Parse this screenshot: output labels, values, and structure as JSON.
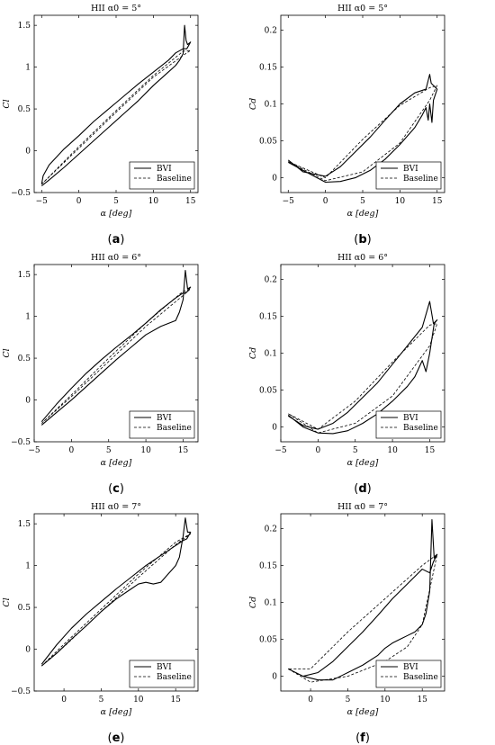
{
  "chart_data": [
    {
      "type": "line",
      "title": "HII α0 = 5°",
      "xlabel": "α [deg]",
      "ylabel": "Cl",
      "xlim": [
        -6,
        16
      ],
      "ylim": [
        -0.5,
        1.62
      ],
      "xticks": [
        -5,
        0,
        5,
        10,
        15
      ],
      "yticks": [
        -0.5,
        0,
        0.5,
        1,
        1.5
      ],
      "caption": "(a)",
      "legend": {
        "position": "bottom-right",
        "entries": [
          "BVI",
          "Baseline"
        ]
      },
      "series": [
        {
          "name": "BVI",
          "style": "solid",
          "x": [
            -5,
            -4,
            -2,
            0,
            2,
            4,
            6,
            8,
            10,
            12,
            13,
            13.5,
            14,
            14.2,
            14.4,
            14.6,
            15,
            14.5,
            14,
            13,
            12,
            10,
            8,
            6,
            4,
            2,
            0,
            -2,
            -4,
            -4.8,
            -5
          ],
          "y": [
            -0.42,
            -0.35,
            -0.2,
            -0.04,
            0.12,
            0.28,
            0.44,
            0.6,
            0.78,
            0.94,
            1.02,
            1.08,
            1.16,
            1.5,
            1.32,
            1.27,
            1.3,
            1.22,
            1.22,
            1.17,
            1.08,
            0.94,
            0.8,
            0.65,
            0.5,
            0.35,
            0.18,
            0.02,
            -0.17,
            -0.3,
            -0.4
          ]
        },
        {
          "name": "Baseline",
          "style": "dashed",
          "x": [
            -5,
            0,
            5,
            10,
            14,
            15,
            14,
            10,
            5,
            0,
            -5
          ],
          "y": [
            -0.4,
            0.05,
            0.48,
            0.9,
            1.19,
            1.2,
            1.14,
            0.88,
            0.46,
            0.03,
            -0.4
          ]
        }
      ]
    },
    {
      "type": "line",
      "title": "HII α0 = 5°",
      "xlabel": "α [deg]",
      "ylabel": "Cd",
      "xlim": [
        -6,
        16
      ],
      "ylim": [
        -0.02,
        0.22
      ],
      "xticks": [
        -5,
        0,
        5,
        10,
        15
      ],
      "yticks": [
        0,
        0.05,
        0.1,
        0.15,
        0.2
      ],
      "caption": "(b)",
      "legend": {
        "position": "bottom-right",
        "entries": [
          "BVI",
          "Baseline"
        ]
      },
      "series": [
        {
          "name": "BVI",
          "style": "solid",
          "x": [
            -5,
            -3,
            0,
            2,
            4,
            6,
            8,
            10,
            12,
            13,
            13.5,
            13.8,
            14,
            14.3,
            14.5,
            15,
            14.5,
            14.2,
            14,
            13.5,
            12,
            10,
            8,
            6,
            4,
            2,
            0,
            -3,
            -5
          ],
          "y": [
            0.021,
            0.01,
            -0.006,
            -0.005,
            0.0,
            0.01,
            0.025,
            0.045,
            0.068,
            0.085,
            0.095,
            0.078,
            0.1,
            0.075,
            0.105,
            0.12,
            0.125,
            0.128,
            0.14,
            0.12,
            0.115,
            0.1,
            0.078,
            0.055,
            0.035,
            0.015,
            0.002,
            0.008,
            0.024
          ]
        },
        {
          "name": "Baseline",
          "style": "dashed",
          "x": [
            -5,
            0,
            5,
            10,
            14,
            15,
            14,
            10,
            5,
            0,
            -5
          ],
          "y": [
            0.022,
            -0.004,
            0.008,
            0.047,
            0.105,
            0.125,
            0.122,
            0.098,
            0.052,
            0.0,
            0.022
          ]
        }
      ]
    },
    {
      "type": "line",
      "title": "HII α0 = 6°",
      "xlabel": "α [deg]",
      "ylabel": "Cl",
      "xlim": [
        -5,
        17
      ],
      "ylim": [
        -0.5,
        1.62
      ],
      "xticks": [
        -5,
        0,
        5,
        10,
        15
      ],
      "yticks": [
        -0.5,
        0,
        0.5,
        1,
        1.5
      ],
      "caption": "(c)",
      "legend": {
        "position": "bottom-right",
        "entries": [
          "BVI",
          "Baseline"
        ]
      },
      "series": [
        {
          "name": "BVI",
          "style": "solid",
          "x": [
            -4,
            -2,
            0,
            2,
            4,
            6,
            8,
            10,
            12,
            14,
            14.5,
            15,
            15.3,
            15.6,
            16,
            15.5,
            15,
            14,
            12,
            10,
            8,
            6,
            4,
            2,
            0,
            -2,
            -4
          ],
          "y": [
            -0.3,
            -0.15,
            0.0,
            0.16,
            0.32,
            0.48,
            0.63,
            0.78,
            0.88,
            0.95,
            1.05,
            1.2,
            1.55,
            1.33,
            1.35,
            1.29,
            1.28,
            1.22,
            1.08,
            0.92,
            0.77,
            0.63,
            0.48,
            0.32,
            0.14,
            -0.05,
            -0.26
          ]
        },
        {
          "name": "Baseline",
          "style": "dashed",
          "x": [
            -4,
            0,
            5,
            10,
            15,
            16,
            15,
            10,
            5,
            0,
            -4
          ],
          "y": [
            -0.28,
            0.06,
            0.5,
            0.92,
            1.3,
            1.33,
            1.25,
            0.88,
            0.46,
            0.04,
            -0.28
          ]
        }
      ]
    },
    {
      "type": "line",
      "title": "HII α0 = 6°",
      "xlabel": "α [deg]",
      "ylabel": "Cd",
      "xlim": [
        -5,
        17
      ],
      "ylim": [
        -0.02,
        0.22
      ],
      "xticks": [
        -5,
        0,
        5,
        10,
        15
      ],
      "yticks": [
        0,
        0.05,
        0.1,
        0.15,
        0.2
      ],
      "caption": "(d)",
      "legend": {
        "position": "bottom-right",
        "entries": [
          "BVI",
          "Baseline"
        ]
      },
      "series": [
        {
          "name": "BVI",
          "style": "solid",
          "x": [
            -4,
            -2,
            0,
            2,
            4,
            6,
            8,
            10,
            12,
            13,
            14,
            14.5,
            15,
            15.3,
            15.6,
            16,
            15.5,
            15,
            14,
            12,
            10,
            8,
            6,
            4,
            2,
            0,
            -2,
            -4
          ],
          "y": [
            0.016,
            0.0,
            -0.008,
            -0.009,
            -0.005,
            0.005,
            0.018,
            0.035,
            0.055,
            0.068,
            0.09,
            0.075,
            0.1,
            0.12,
            0.14,
            0.145,
            0.14,
            0.17,
            0.135,
            0.11,
            0.085,
            0.06,
            0.04,
            0.02,
            0.005,
            -0.003,
            0.002,
            0.015
          ]
        },
        {
          "name": "Baseline",
          "style": "dashed",
          "x": [
            -4,
            0,
            5,
            10,
            15,
            16,
            15,
            10,
            5,
            0,
            -4
          ],
          "y": [
            0.018,
            -0.008,
            0.005,
            0.042,
            0.11,
            0.14,
            0.138,
            0.088,
            0.035,
            -0.003,
            0.018
          ]
        }
      ]
    },
    {
      "type": "line",
      "title": "HII α0 = 7°",
      "xlabel": "α [deg]",
      "ylabel": "Cl",
      "xlim": [
        -4,
        18
      ],
      "ylim": [
        -0.5,
        1.62
      ],
      "xticks": [
        0,
        5,
        10,
        15
      ],
      "yticks": [
        -0.5,
        0,
        0.5,
        1,
        1.5
      ],
      "caption": "(e)",
      "legend": {
        "position": "bottom-right",
        "entries": [
          "BVI",
          "Baseline"
        ]
      },
      "series": [
        {
          "name": "BVI",
          "style": "solid",
          "x": [
            -3,
            -1,
            1,
            3,
            5,
            7,
            9,
            10,
            11,
            12,
            13,
            14,
            15,
            15.5,
            16,
            16.3,
            16.6,
            17,
            16.5,
            16,
            15,
            13,
            11,
            9,
            7,
            5,
            3,
            1,
            -1,
            -3
          ],
          "y": [
            -0.2,
            -0.05,
            0.12,
            0.28,
            0.45,
            0.6,
            0.72,
            0.78,
            0.8,
            0.78,
            0.8,
            0.9,
            1.0,
            1.1,
            1.35,
            1.57,
            1.4,
            1.4,
            1.32,
            1.3,
            1.24,
            1.12,
            1.0,
            0.86,
            0.72,
            0.57,
            0.42,
            0.25,
            0.05,
            -0.18
          ]
        },
        {
          "name": "Baseline",
          "style": "dashed",
          "x": [
            -3,
            0,
            5,
            10,
            15,
            17,
            15,
            10,
            5,
            0,
            -3
          ],
          "y": [
            -0.2,
            0.06,
            0.48,
            0.9,
            1.28,
            1.38,
            1.25,
            0.86,
            0.45,
            0.03,
            -0.2
          ]
        }
      ]
    },
    {
      "type": "line",
      "title": "HII α0 = 7°",
      "xlabel": "α [deg]",
      "ylabel": "Cd",
      "xlim": [
        -4,
        18
      ],
      "ylim": [
        -0.02,
        0.22
      ],
      "xticks": [
        0,
        5,
        10,
        15
      ],
      "yticks": [
        0,
        0.05,
        0.1,
        0.15,
        0.2
      ],
      "caption": "(f)",
      "legend": {
        "position": "bottom-right",
        "entries": [
          "BVI",
          "Baseline"
        ]
      },
      "series": [
        {
          "name": "BVI",
          "style": "solid",
          "x": [
            -3,
            -1,
            1,
            3,
            5,
            7,
            9,
            10,
            11,
            12,
            13,
            14,
            15,
            15.5,
            16,
            16.3,
            16.6,
            17,
            16.5,
            16,
            15,
            13,
            11,
            9,
            7,
            5,
            3,
            1,
            -1,
            -3
          ],
          "y": [
            0.01,
            0.0,
            -0.005,
            -0.005,
            0.005,
            0.015,
            0.028,
            0.038,
            0.045,
            0.05,
            0.055,
            0.06,
            0.07,
            0.085,
            0.115,
            0.212,
            0.16,
            0.165,
            0.155,
            0.14,
            0.145,
            0.125,
            0.105,
            0.082,
            0.06,
            0.04,
            0.02,
            0.005,
            0.0,
            0.01
          ]
        },
        {
          "name": "Baseline",
          "style": "dashed",
          "x": [
            -3,
            0,
            5,
            10,
            13,
            15,
            17,
            15,
            10,
            5,
            0,
            -3
          ],
          "y": [
            0.01,
            -0.008,
            0.0,
            0.02,
            0.04,
            0.07,
            0.165,
            0.15,
            0.105,
            0.06,
            0.01,
            0.01
          ]
        }
      ]
    }
  ]
}
